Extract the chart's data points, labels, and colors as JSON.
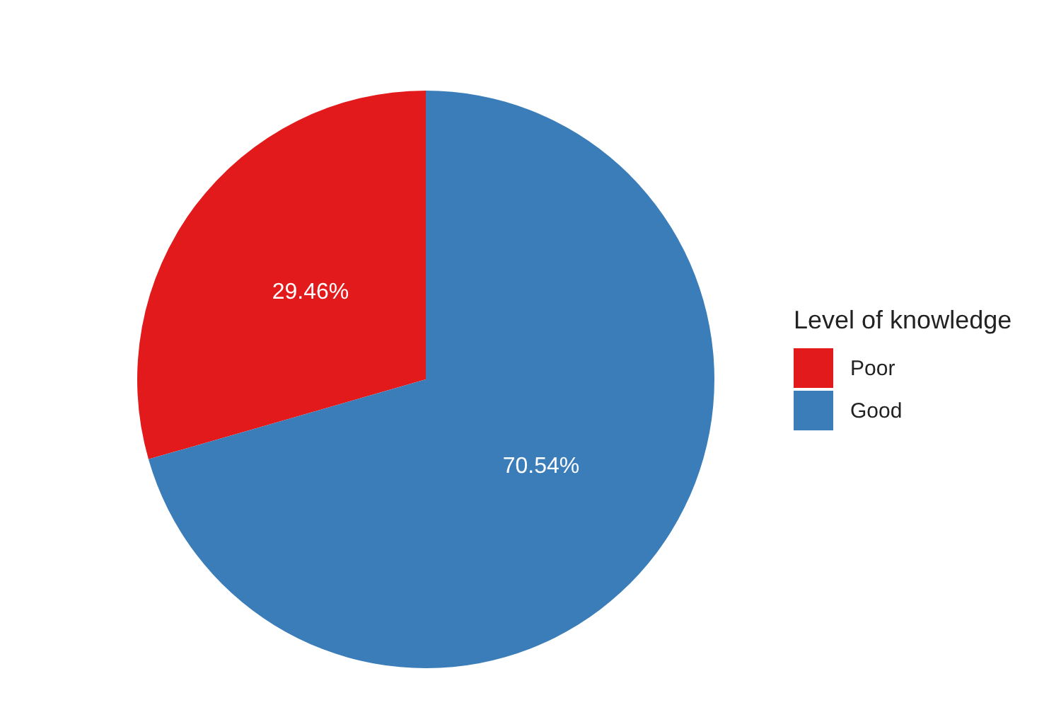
{
  "chart_data": {
    "type": "pie",
    "legend_title": "Level of knowledge",
    "legend": "right",
    "categories": [
      "Poor",
      "Good"
    ],
    "values": [
      29.46,
      70.54
    ],
    "colors": [
      "#e31a1c",
      "#3a7db8"
    ],
    "value_labels": [
      "29.46%",
      "70.54%"
    ]
  }
}
